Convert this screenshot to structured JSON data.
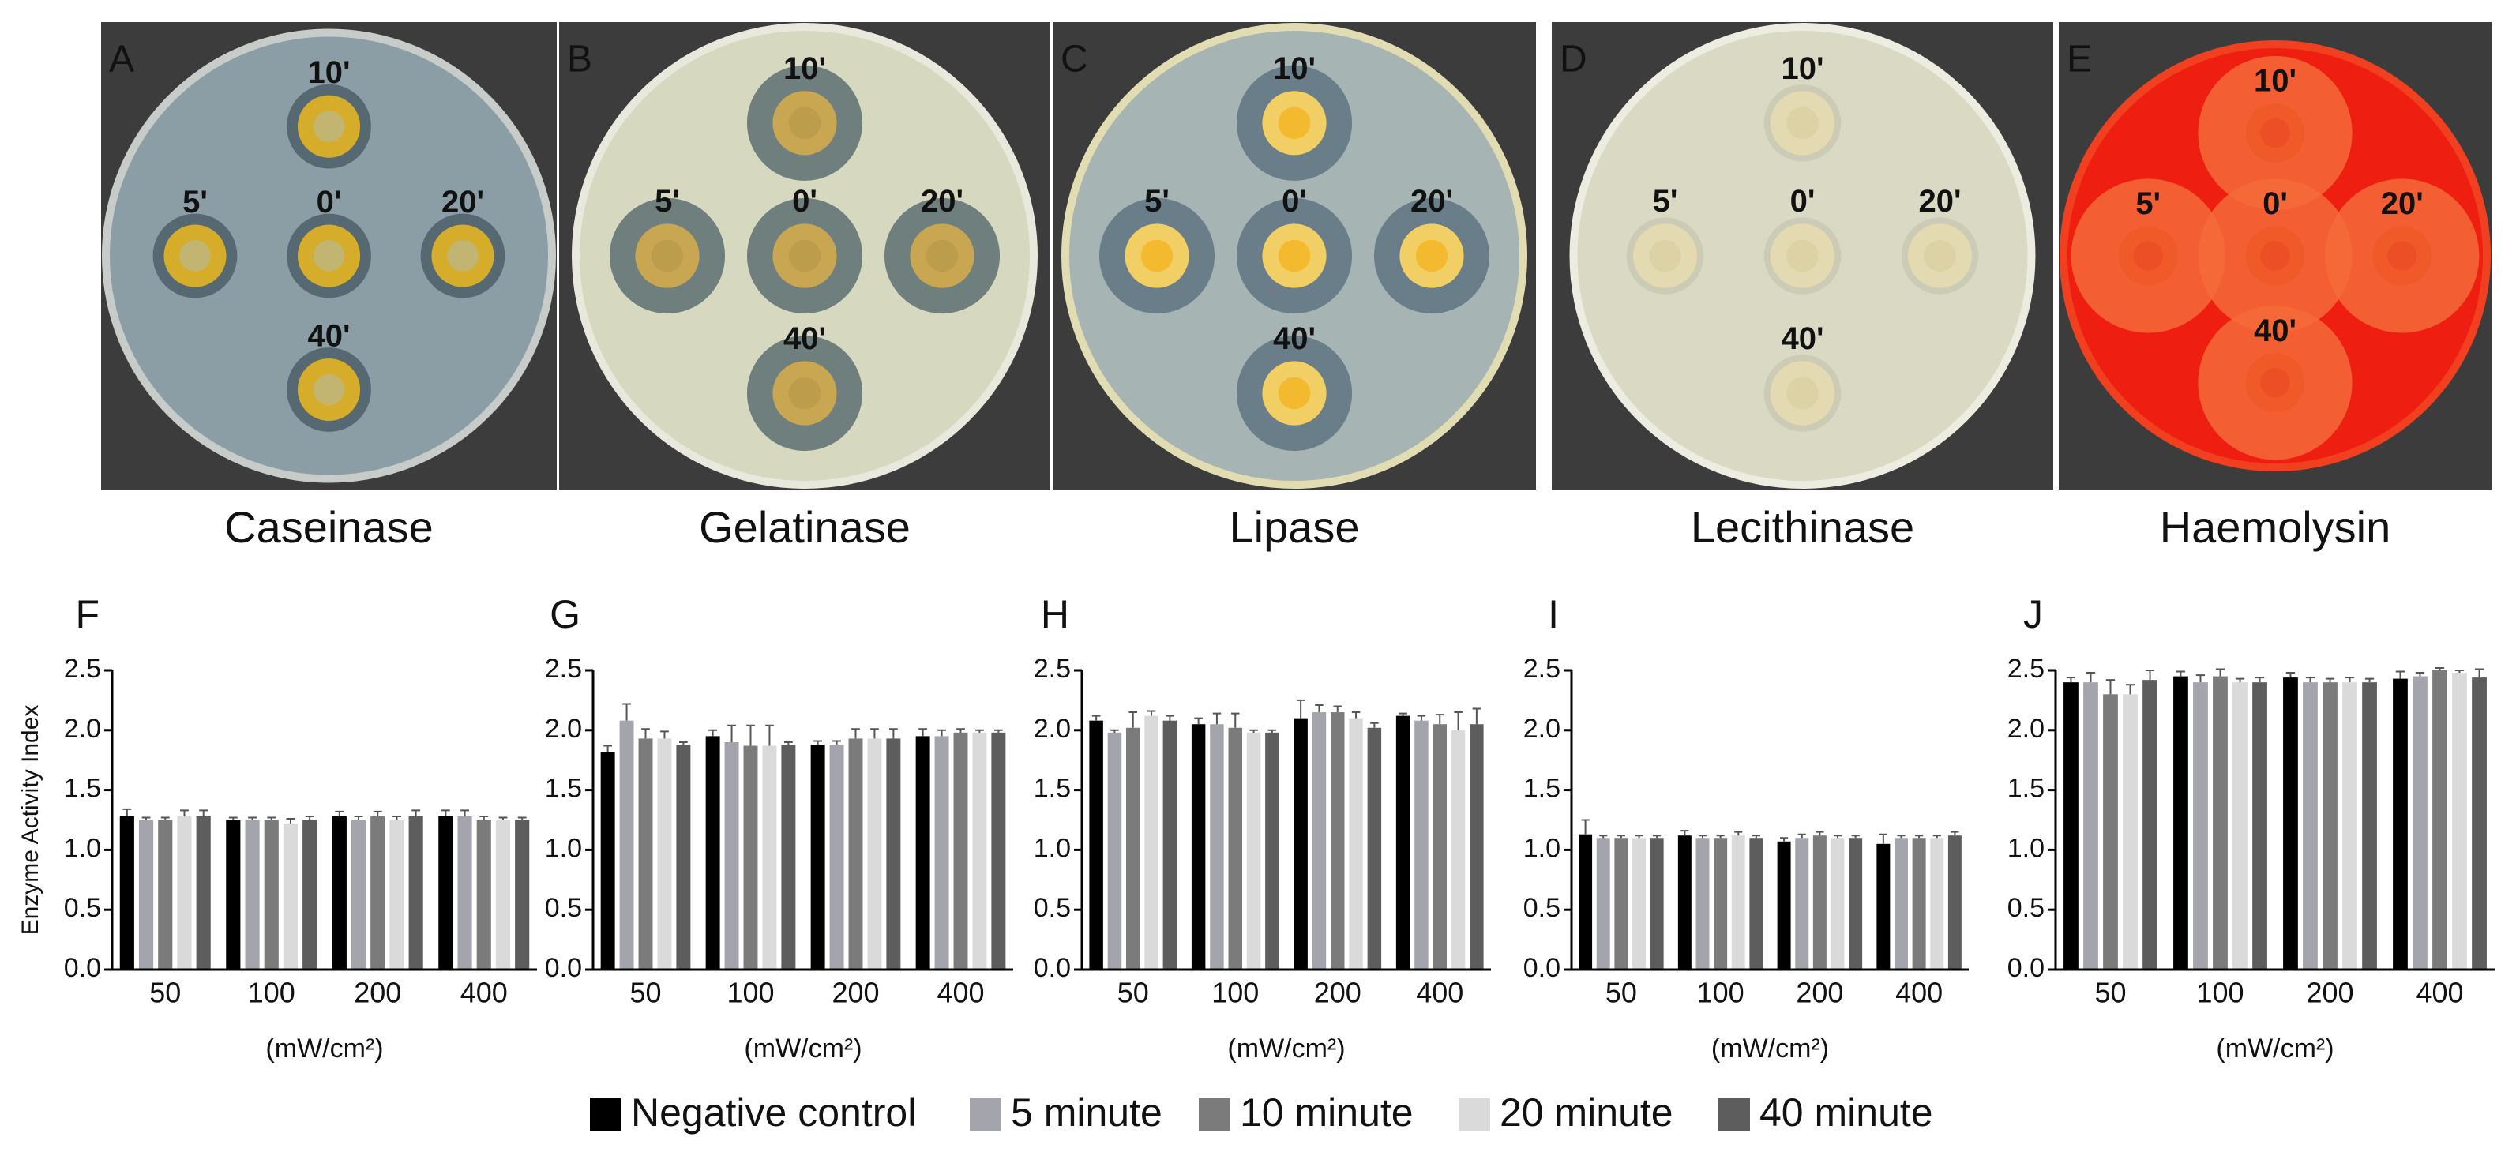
{
  "plates": [
    {
      "label": "A",
      "name": "Caseinase",
      "spots": [
        "10'",
        "5'",
        "0'",
        "20'",
        "40'"
      ]
    },
    {
      "label": "B",
      "name": "Gelatinase",
      "spots": [
        "10'",
        "5'",
        "0'",
        "20'",
        "40'"
      ]
    },
    {
      "label": "C",
      "name": "Lipase",
      "spots": [
        "10'",
        "5'",
        "0'",
        "20'",
        "40'"
      ]
    },
    {
      "label": "D",
      "name": "Lecithinase",
      "spots": [
        "10'",
        "5'",
        "0'",
        "20'",
        "40'"
      ]
    },
    {
      "label": "E",
      "name": "Haemolysin",
      "spots": [
        "10'",
        "5'",
        "0'",
        "20'",
        "40'"
      ]
    }
  ],
  "chart_data": [
    {
      "type": "bar",
      "label": "F",
      "ylabel": "Enzyme Activity Index",
      "xlabel": "(mW/cm²)",
      "categories": [
        "50",
        "100",
        "200",
        "400"
      ],
      "ylim": [
        0,
        2.5
      ],
      "yticks": [
        {
          "value": 0,
          "label": "0.0"
        },
        0.5,
        {
          "value": 1,
          "label": "1.0"
        },
        1.5,
        {
          "value": 2,
          "label": "2.0"
        },
        2.5
      ],
      "series": [
        {
          "name": "Negative control",
          "color": "#000000",
          "values": [
            1.28,
            1.25,
            1.28,
            1.28
          ],
          "errors": [
            0.06,
            0.02,
            0.04,
            0.05
          ]
        },
        {
          "name": "5 minute",
          "color": "#a4a4ad",
          "values": [
            1.25,
            1.25,
            1.25,
            1.28
          ],
          "errors": [
            0.02,
            0.02,
            0.03,
            0.05
          ]
        },
        {
          "name": "10 minute",
          "color": "#7b7b7b",
          "values": [
            1.25,
            1.25,
            1.28,
            1.25
          ],
          "errors": [
            0.02,
            0.02,
            0.04,
            0.03
          ]
        },
        {
          "name": "20 minute",
          "color": "#dadada",
          "values": [
            1.28,
            1.22,
            1.25,
            1.25
          ],
          "errors": [
            0.05,
            0.04,
            0.03,
            0.02
          ]
        },
        {
          "name": "40 minute",
          "color": "#5d5d5d",
          "values": [
            1.28,
            1.25,
            1.28,
            1.25
          ],
          "errors": [
            0.05,
            0.03,
            0.05,
            0.02
          ]
        }
      ]
    },
    {
      "type": "bar",
      "label": "G",
      "xlabel": "(mW/cm²)",
      "categories": [
        "50",
        "100",
        "200",
        "400"
      ],
      "ylim": [
        0,
        2.5
      ],
      "yticks": [
        {
          "value": 0,
          "label": "0.0"
        },
        0.5,
        {
          "value": 1,
          "label": "1.0"
        },
        1.5,
        {
          "value": 2,
          "label": "2.0"
        },
        2.5
      ],
      "series": [
        {
          "values": [
            1.82,
            1.95,
            1.88,
            1.95
          ],
          "errors": [
            0.05,
            0.05,
            0.03,
            0.06
          ]
        },
        {
          "values": [
            2.08,
            1.9,
            1.88,
            1.95
          ],
          "errors": [
            0.14,
            0.14,
            0.03,
            0.05
          ]
        },
        {
          "values": [
            1.93,
            1.87,
            1.93,
            1.98
          ],
          "errors": [
            0.08,
            0.17,
            0.08,
            0.03
          ]
        },
        {
          "values": [
            1.93,
            1.87,
            1.93,
            1.98
          ],
          "errors": [
            0.06,
            0.17,
            0.08,
            0.02
          ]
        },
        {
          "values": [
            1.88,
            1.88,
            1.93,
            1.98
          ],
          "errors": [
            0.02,
            0.02,
            0.08,
            0.02
          ]
        }
      ]
    },
    {
      "type": "bar",
      "label": "H",
      "xlabel": "(mW/cm²)",
      "categories": [
        "50",
        "100",
        "200",
        "400"
      ],
      "ylim": [
        0,
        2.5
      ],
      "yticks": [
        {
          "value": 0,
          "label": "0.0"
        },
        0.5,
        {
          "value": 1,
          "label": "1.0"
        },
        1.5,
        {
          "value": 2,
          "label": "2.0"
        },
        2.5
      ],
      "series": [
        {
          "values": [
            2.08,
            2.05,
            2.1,
            2.12
          ],
          "errors": [
            0.04,
            0.05,
            0.15,
            0.02
          ]
        },
        {
          "values": [
            1.98,
            2.05,
            2.15,
            2.08
          ],
          "errors": [
            0.02,
            0.09,
            0.06,
            0.04
          ]
        },
        {
          "values": [
            2.02,
            2.02,
            2.15,
            2.05
          ],
          "errors": [
            0.13,
            0.12,
            0.05,
            0.08
          ]
        },
        {
          "values": [
            2.12,
            1.98,
            2.1,
            2.0
          ],
          "errors": [
            0.04,
            0.02,
            0.05,
            0.15
          ]
        },
        {
          "values": [
            2.08,
            1.98,
            2.02,
            2.05
          ],
          "errors": [
            0.04,
            0.02,
            0.04,
            0.13
          ]
        }
      ]
    },
    {
      "type": "bar",
      "label": "I",
      "xlabel": "(mW/cm²)",
      "categories": [
        "50",
        "100",
        "200",
        "400"
      ],
      "ylim": [
        0,
        2.5
      ],
      "yticks": [
        {
          "value": 0,
          "label": "0.0"
        },
        0.5,
        {
          "value": 1,
          "label": "1.0"
        },
        1.5,
        {
          "value": 2,
          "label": "2.0"
        },
        2.5
      ],
      "series": [
        {
          "values": [
            1.13,
            1.12,
            1.07,
            1.05
          ],
          "errors": [
            0.12,
            0.04,
            0.03,
            0.08
          ]
        },
        {
          "values": [
            1.1,
            1.1,
            1.1,
            1.1
          ],
          "errors": [
            0.02,
            0.02,
            0.03,
            0.02
          ]
        },
        {
          "values": [
            1.1,
            1.1,
            1.12,
            1.1
          ],
          "errors": [
            0.02,
            0.02,
            0.03,
            0.02
          ]
        },
        {
          "values": [
            1.1,
            1.12,
            1.1,
            1.1
          ],
          "errors": [
            0.02,
            0.03,
            0.02,
            0.02
          ]
        },
        {
          "values": [
            1.1,
            1.1,
            1.1,
            1.12
          ],
          "errors": [
            0.02,
            0.02,
            0.02,
            0.03
          ]
        }
      ]
    },
    {
      "type": "bar",
      "label": "J",
      "xlabel": "(mW/cm²)",
      "categories": [
        "50",
        "100",
        "200",
        "400"
      ],
      "ylim": [
        0,
        2.5
      ],
      "yticks": [
        {
          "value": 0,
          "label": "0.0"
        },
        0.5,
        {
          "value": 1,
          "label": "1.0"
        },
        1.5,
        {
          "value": 2,
          "label": "2.0"
        },
        2.5
      ],
      "series": [
        {
          "values": [
            2.4,
            2.45,
            2.44,
            2.43
          ],
          "errors": [
            0.04,
            0.04,
            0.04,
            0.06
          ]
        },
        {
          "values": [
            2.4,
            2.4,
            2.4,
            2.45
          ],
          "errors": [
            0.08,
            0.06,
            0.04,
            0.03
          ]
        },
        {
          "values": [
            2.3,
            2.45,
            2.4,
            2.5
          ],
          "errors": [
            0.12,
            0.06,
            0.03,
            0.02
          ]
        },
        {
          "values": [
            2.3,
            2.4,
            2.4,
            2.48
          ],
          "errors": [
            0.08,
            0.03,
            0.04,
            0.02
          ]
        },
        {
          "values": [
            2.42,
            2.4,
            2.4,
            2.44
          ],
          "errors": [
            0.08,
            0.04,
            0.03,
            0.07
          ]
        }
      ]
    }
  ]
}
